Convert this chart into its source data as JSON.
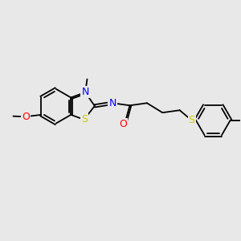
{
  "background_color": "#e8e8e8",
  "bond_color": "#000000",
  "atom_colors": {
    "N": "#0000ff",
    "O": "#ff0000",
    "S": "#cccc00"
  },
  "lw": 1.3,
  "figsize": [
    3.0,
    3.0
  ],
  "dpi": 100
}
